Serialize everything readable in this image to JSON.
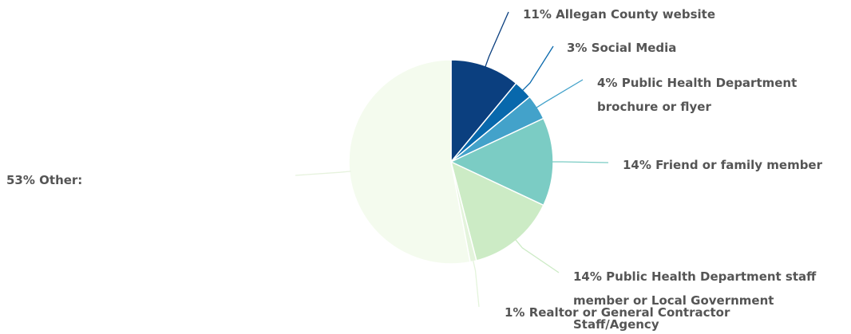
{
  "chart_data": {
    "type": "pie",
    "categories": [
      "Allegan County website",
      "Social Media",
      "Public Health Department brochure or flyer",
      "Friend or family member",
      "Public Health Department staff member or Local Government Staff/Agency",
      "Realtor or General Contractor",
      "Other:"
    ],
    "values": [
      11,
      3,
      4,
      14,
      14,
      1,
      53
    ],
    "value_labels": [
      "11%",
      "3%",
      "4%",
      "14%",
      "14%",
      "1%",
      "53%"
    ],
    "colors": [
      "#0b3f7f",
      "#0868ac",
      "#43a2ca",
      "#7bccc4",
      "#ccebc5",
      "#e4f4dc",
      "#f4fbee"
    ]
  }
}
